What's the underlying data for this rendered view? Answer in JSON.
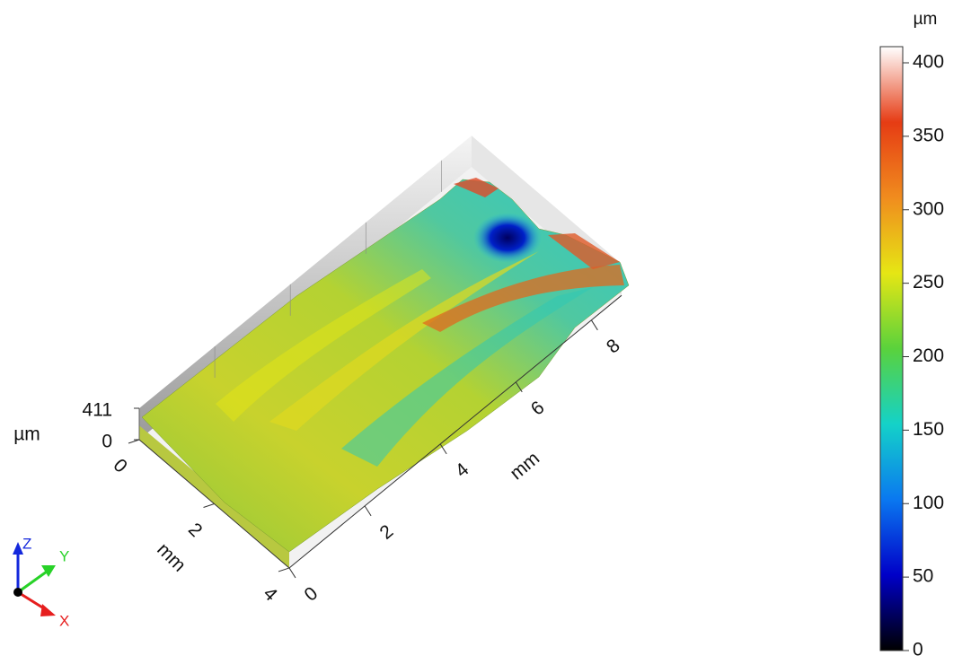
{
  "chart_data": {
    "type": "surface3d",
    "x_label": "mm",
    "y_label": "mm",
    "z_label": "µm",
    "xlim": [
      0,
      8.8
    ],
    "xticks": [
      0,
      2,
      4,
      6,
      8
    ],
    "ylim": [
      0,
      4
    ],
    "yticks": [
      0,
      2,
      4
    ],
    "zlim": [
      0,
      411
    ],
    "zticks": [
      0,
      411
    ],
    "colorbar": {
      "label": "µm",
      "lim": [
        0,
        411
      ],
      "ticks": [
        0,
        50,
        100,
        150,
        200,
        250,
        300,
        350,
        400
      ],
      "colormap": [
        "#000000",
        "#0000c8",
        "#0a78f0",
        "#14d2c8",
        "#5ad23c",
        "#e6e614",
        "#f08c1e",
        "#e63c14",
        "#ffffff"
      ]
    },
    "triad": {
      "x": "X",
      "y": "Y",
      "z": "Z"
    }
  }
}
